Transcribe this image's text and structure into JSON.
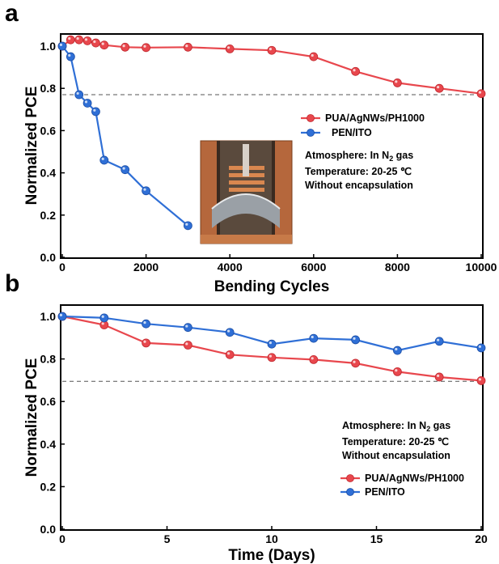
{
  "panels": [
    {
      "letter": "a"
    },
    {
      "letter": "b"
    }
  ],
  "chart_data": [
    {
      "type": "line",
      "xlabel": "Bending Cycles",
      "ylabel": "Normalized PCE",
      "xlim": [
        0,
        10000
      ],
      "ylim": [
        0,
        1.05
      ],
      "xticks": [
        "0",
        "2000",
        "4000",
        "6000",
        "8000",
        "10000"
      ],
      "yticks": [
        "0.0",
        "0.2",
        "0.4",
        "0.6",
        "0.8",
        "1.0"
      ],
      "reference_line": 0.77,
      "legend": {
        "placement": "right-middle"
      },
      "series": [
        {
          "name": "PUA/AgNWs/PH1000",
          "color": "#e8474d",
          "x": [
            0,
            200,
            400,
            600,
            800,
            1000,
            1500,
            2000,
            3000,
            4000,
            5000,
            6000,
            7000,
            8000,
            9000,
            10000
          ],
          "y": [
            1.0,
            1.03,
            1.03,
            1.025,
            1.015,
            1.005,
            0.995,
            0.993,
            0.995,
            0.987,
            0.98,
            0.95,
            0.88,
            0.826,
            0.8,
            0.775
          ]
        },
        {
          "name": "PEN/ITO",
          "color": "#2f6fd6",
          "x": [
            0,
            200,
            400,
            600,
            800,
            1000,
            1500,
            2000,
            3000
          ],
          "y": [
            1.0,
            0.95,
            0.77,
            0.73,
            0.69,
            0.46,
            0.415,
            0.315,
            0.15
          ]
        }
      ],
      "annotations": {
        "atmosphere_prefix": "Atmosphere: In N",
        "atmosphere_sub": "2",
        "atmosphere_suffix": " gas",
        "temperature": "Temperature: 20-25 ℃",
        "encapsulation": "Without encapsulation"
      },
      "inset": "photo of bent device strips"
    },
    {
      "type": "line",
      "xlabel": "Time (Days)",
      "ylabel": "Normalized PCE",
      "xlim": [
        0,
        20
      ],
      "ylim": [
        0,
        1.05
      ],
      "xticks": [
        "0",
        "5",
        "10",
        "15",
        "20"
      ],
      "yticks": [
        "0.0",
        "0.2",
        "0.4",
        "0.6",
        "0.8",
        "1.0"
      ],
      "reference_line": 0.695,
      "legend": {
        "placement": "bottom-right"
      },
      "series": [
        {
          "name": "PUA/AgNWs/PH1000",
          "color": "#e8474d",
          "x": [
            0,
            2,
            4,
            6,
            8,
            10,
            12,
            14,
            16,
            18,
            20
          ],
          "y": [
            1.0,
            0.96,
            0.875,
            0.865,
            0.82,
            0.807,
            0.797,
            0.78,
            0.74,
            0.715,
            0.698
          ]
        },
        {
          "name": "PEN/ITO",
          "color": "#2f6fd6",
          "x": [
            0,
            2,
            4,
            6,
            8,
            10,
            12,
            14,
            16,
            18,
            20
          ],
          "y": [
            1.0,
            0.993,
            0.965,
            0.948,
            0.925,
            0.87,
            0.897,
            0.89,
            0.84,
            0.883,
            0.852
          ]
        }
      ],
      "annotations": {
        "atmosphere_prefix": "Atmosphere: In N",
        "atmosphere_sub": "2",
        "atmosphere_suffix": " gas",
        "temperature": "Temperature: 20-25 ℃",
        "encapsulation": "Without encapsulation"
      }
    }
  ]
}
